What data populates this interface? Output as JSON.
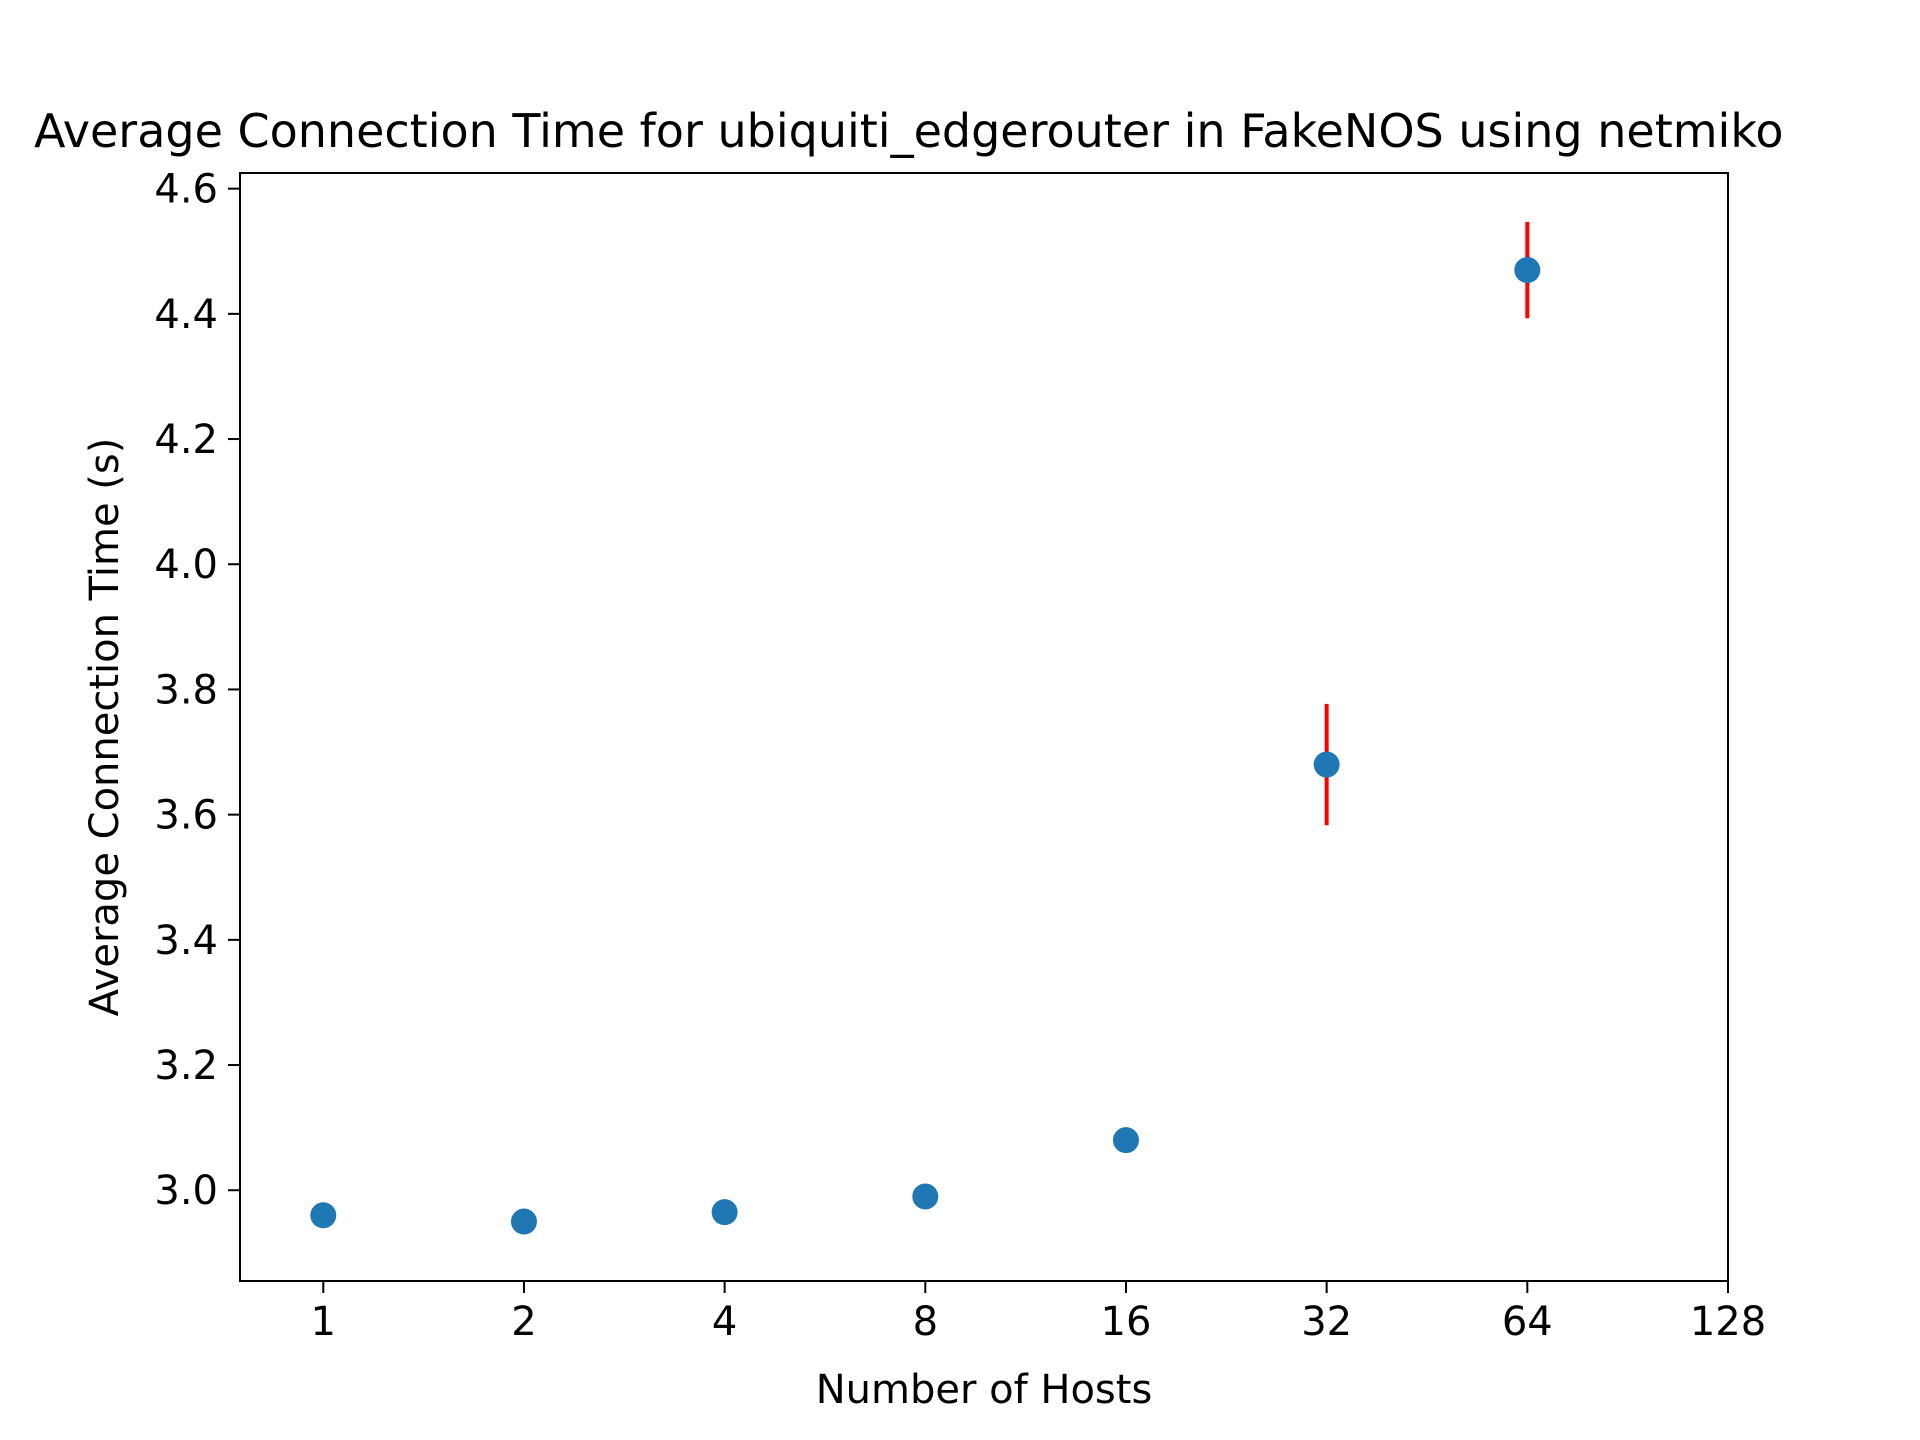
{
  "chart_data": {
    "type": "scatter",
    "title": "Average Connection Time for ubiquiti_edgerouter in FakeNOS using netmiko",
    "xlabel": "Number of Hosts",
    "ylabel": "Average Connection Time (s)",
    "x_scale": "log2",
    "x_ticks": [
      1,
      2,
      4,
      8,
      16,
      32,
      64,
      128
    ],
    "x_tick_labels": [
      "1",
      "2",
      "4",
      "8",
      "16",
      "32",
      "64",
      "128"
    ],
    "xlim": [
      0.75,
      128
    ],
    "y_ticks": [
      3.0,
      3.2,
      3.4,
      3.6,
      3.8,
      4.0,
      4.2,
      4.4,
      4.6
    ],
    "y_tick_labels": [
      "3.0",
      "3.2",
      "3.4",
      "3.6",
      "3.8",
      "4.0",
      "4.2",
      "4.4",
      "4.6"
    ],
    "ylim": [
      2.855,
      4.625
    ],
    "grid": false,
    "series": [
      {
        "x": [
          1,
          2,
          4,
          8,
          16,
          32,
          64
        ],
        "y": [
          2.96,
          2.95,
          2.965,
          2.99,
          3.08,
          3.68,
          4.47
        ],
        "error": [
          0.005,
          0.005,
          0.005,
          0.005,
          0.005,
          0.097,
          0.077
        ]
      }
    ],
    "colors": {
      "marker": "#1f77b4",
      "errorbar": "#ff0000",
      "axes": "#000000"
    }
  }
}
